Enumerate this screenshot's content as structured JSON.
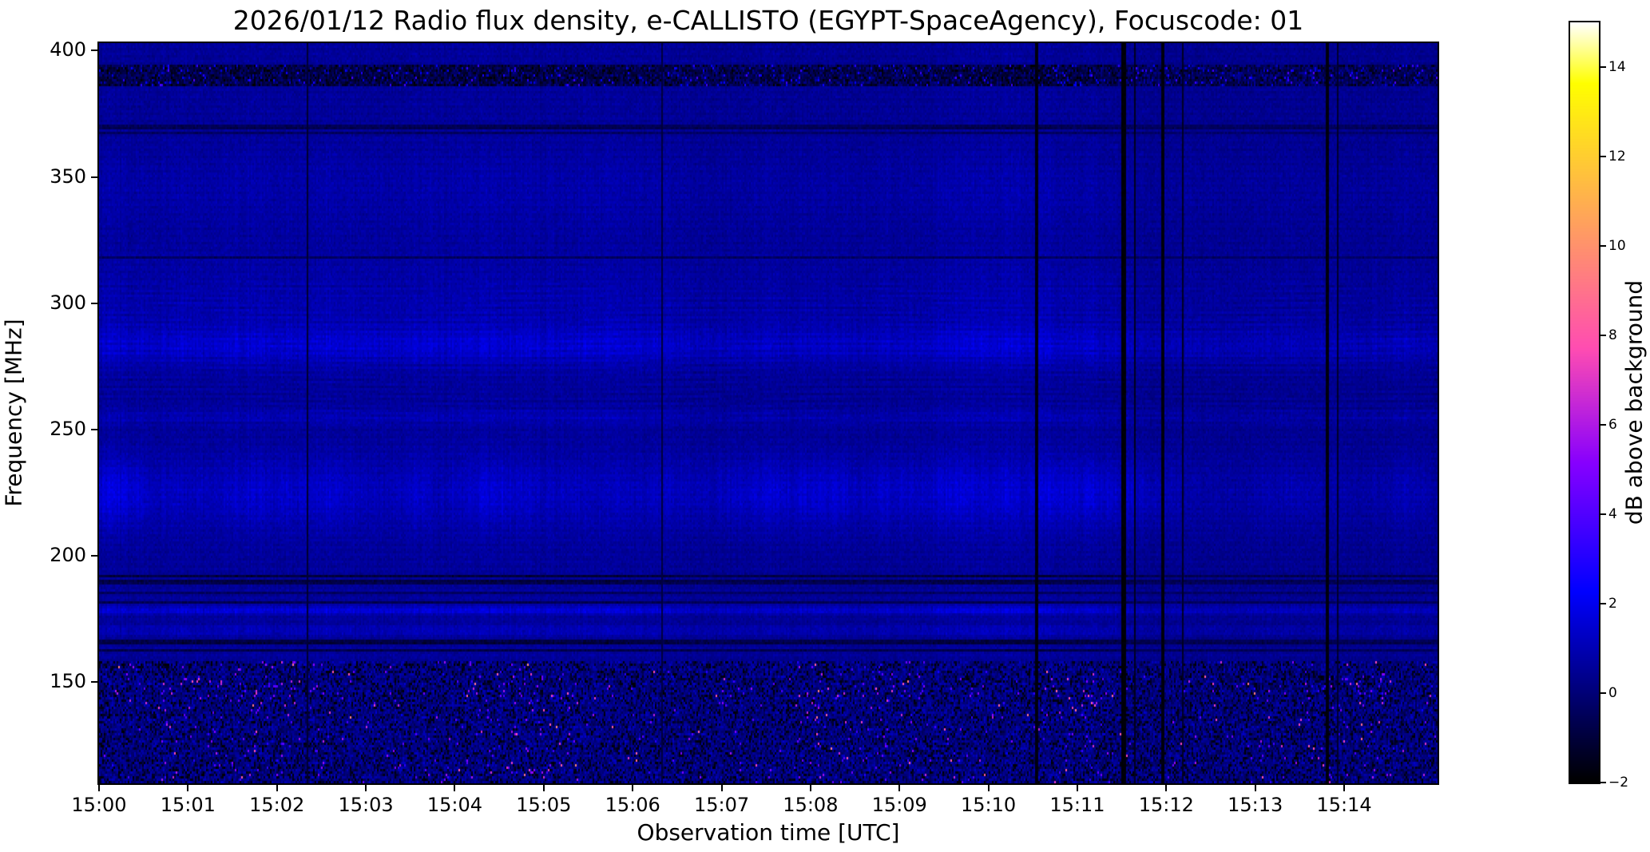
{
  "figure": {
    "background": "#ffffff",
    "accent_colors": {
      "deep_blue": "#00008c",
      "bright_blue": "#0000ff",
      "burst_pink": "#ff55aa",
      "peak_yellow": "#ffff40"
    }
  },
  "chart_data": {
    "type": "heatmap",
    "title": "2026/01/12  Radio flux density, e-CALLISTO (EGYPT-SpaceAgency), Focuscode: 01",
    "xlabel": "Observation time [UTC]",
    "ylabel": "Frequency [MHz]",
    "x_ticks": [
      "15:00",
      "15:01",
      "15:02",
      "15:03",
      "15:04",
      "15:05",
      "15:06",
      "15:07",
      "15:08",
      "15:09",
      "15:10",
      "15:11",
      "15:12",
      "15:13",
      "15:14"
    ],
    "x_tick_minutes": [
      0,
      1,
      2,
      3,
      4,
      5,
      6,
      7,
      8,
      9,
      10,
      11,
      12,
      13,
      14
    ],
    "x_range_minutes": [
      0,
      15.05
    ],
    "y_ticks": [
      400,
      350,
      300,
      250,
      200,
      150
    ],
    "y_range_mhz": [
      110,
      403
    ],
    "grid": false,
    "legend": "none",
    "colorbar": {
      "label": "dB above background",
      "tick_values": [
        14,
        12,
        10,
        8,
        6,
        4,
        2,
        0,
        -2
      ],
      "tick_labels": [
        "14",
        "12",
        "10",
        "8",
        "6",
        "4",
        "2",
        "0",
        "−2"
      ],
      "vmin": -2,
      "vmax": 15,
      "colormap": "gnuplot2"
    },
    "spectrogram": {
      "description": "Quiet-sun dynamic spectrum, mostly deep-blue background near 0.5 dB with speckled RFI band below 160 MHz",
      "background_level_db": 0.45,
      "noise_sigma_db": 0.3,
      "enhanced_bands": [
        {
          "center": 225,
          "width": 14,
          "boost": 0.85
        },
        {
          "center": 283,
          "width": 7,
          "boost": 0.6
        },
        {
          "center": 255,
          "width": 3,
          "boost": 0.35
        },
        {
          "center": 298,
          "width": 20,
          "boost": 0.28
        },
        {
          "center": 345,
          "width": 15,
          "boost": 0.22
        },
        {
          "center": 178.5,
          "width": 1.6,
          "boost": 0.9
        },
        {
          "center": 170.5,
          "width": 2.0,
          "boost": 0.45
        }
      ],
      "dark_lines": [
        {
          "freq": 391.5,
          "halfwidth": 1.4,
          "level": -1.5
        },
        {
          "freq": 388.0,
          "halfwidth": 1.0,
          "level": -0.9
        },
        {
          "freq": 370.0,
          "halfwidth": 0.8,
          "level": -0.5
        },
        {
          "freq": 367.5,
          "halfwidth": 0.6,
          "level": -0.4
        },
        {
          "freq": 318.0,
          "halfwidth": 0.7,
          "level": -0.3
        },
        {
          "freq": 192.0,
          "halfwidth": 0.8,
          "level": -0.9
        },
        {
          "freq": 189.5,
          "halfwidth": 0.7,
          "level": -0.7
        },
        {
          "freq": 185.5,
          "halfwidth": 0.5,
          "level": -0.3
        },
        {
          "freq": 181.5,
          "halfwidth": 0.6,
          "level": -0.5
        },
        {
          "freq": 166.0,
          "halfwidth": 1.0,
          "level": -0.8
        },
        {
          "freq": 162.5,
          "halfwidth": 0.8,
          "level": -0.6
        }
      ],
      "top_band": {
        "from": 386,
        "to": 394,
        "level": -0.7,
        "sigma": 1.1,
        "bright_prob": 0.06
      },
      "burst_band": {
        "below": 158,
        "level": 0.15,
        "sigma": 1.0,
        "spike_prob": 0.012,
        "black_prob": 0.17,
        "hot_freq": [
          144,
          152
        ],
        "active_minutes": [
          [
            0.7,
            2.6
          ],
          [
            3.9,
            5.2
          ],
          [
            7.8,
            9.3
          ],
          [
            10.7,
            11.3
          ],
          [
            13.4,
            14.6
          ]
        ]
      },
      "ripple": {
        "freq_range": [
          252,
          308
        ],
        "amplitude": 0.16
      },
      "vertical_gaps": [
        {
          "minute": 2.33,
          "width_cols": 1,
          "level": -1.3
        },
        {
          "minute": 6.32,
          "width_cols": 1,
          "level": -1.1
        },
        {
          "minute": 10.52,
          "width_cols": 2,
          "level": -1.9
        },
        {
          "minute": 11.5,
          "width_cols": 3,
          "level": -2.0
        },
        {
          "minute": 11.64,
          "width_cols": 1,
          "level": -1.6
        },
        {
          "minute": 11.95,
          "width_cols": 2,
          "level": -1.9
        },
        {
          "minute": 12.17,
          "width_cols": 1,
          "level": -1.5
        },
        {
          "minute": 13.8,
          "width_cols": 2,
          "level": -1.9
        },
        {
          "minute": 13.92,
          "width_cols": 1,
          "level": -1.4
        }
      ]
    },
    "features": [
      "No strong solar burst; quiet deep-blue background (~0–1 dB) from 160 to 400 MHz",
      "Heavily speckled noise/RFI band below ~160 MHz with intermittent bright pink bursts near 145–152 MHz, strongest around 15:01–15:02, 15:04–15:05, 15:08–15:09, 15:11 and 15:13–15:14",
      "Diffuse enhanced blue emission bands near 210–240 MHz and 275–290 MHz, plus a narrow bright line near 178 MHz",
      "Wavy interference ripple pattern between ~255 and 305 MHz",
      "Dark horizontal RFI-suppressed lines near 163–166, 181–192, 318, 367–370 and 386–393 MHz",
      "Black vertical data-gap lines near 15:02.3, 15:06.3, 15:10.5, 15:11.5–15:12.2 and 15:13.8–15:13.9",
      "Fine vertical column striping across the whole spectrogram"
    ]
  }
}
